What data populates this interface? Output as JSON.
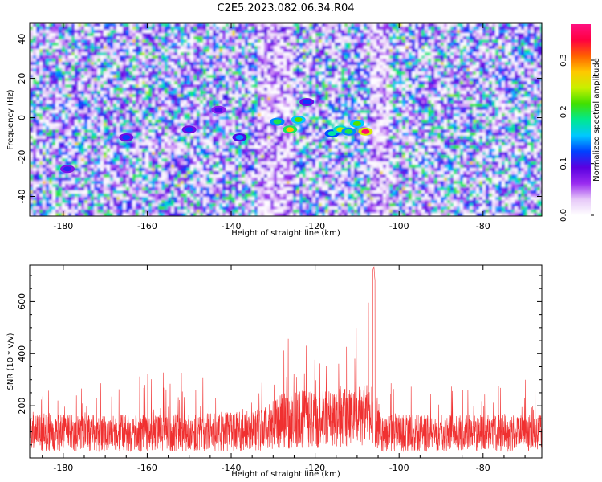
{
  "title": "C2E5.2023.082.06.34.R04",
  "chart_data": [
    {
      "type": "heatmap",
      "xlabel": "Height of straight line (km)",
      "ylabel": "Frequency (Hz)",
      "xlim": [
        -188,
        -66
      ],
      "ylim": [
        -50,
        48
      ],
      "x_ticks": [
        -180,
        -160,
        -140,
        -120,
        -100,
        -80
      ],
      "y_ticks": [
        -40,
        -20,
        0,
        20,
        40
      ],
      "colorbar": {
        "label": "Normalized spectral amplitude",
        "range": [
          0.0,
          0.37
        ],
        "ticks": [
          0.0,
          0.1,
          0.2,
          0.3
        ],
        "colors": [
          "#ffffff",
          "#e6c8f8",
          "#9a2cf0",
          "#5a00e0",
          "#0040ff",
          "#00c8ff",
          "#00e890",
          "#40e000",
          "#c8f000",
          "#ffc800",
          "#ff6000",
          "#ff0040",
          "#ff1080"
        ]
      },
      "hot_spots": [
        {
          "x": -129,
          "y": -2,
          "value": 0.2
        },
        {
          "x": -126,
          "y": -6,
          "value": 0.28
        },
        {
          "x": -124,
          "y": -1,
          "value": 0.22
        },
        {
          "x": -122,
          "y": 8,
          "value": 0.12
        },
        {
          "x": -116,
          "y": -8,
          "value": 0.18
        },
        {
          "x": -114,
          "y": -6,
          "value": 0.24
        },
        {
          "x": -112,
          "y": -7,
          "value": 0.2
        },
        {
          "x": -110,
          "y": -3,
          "value": 0.22
        },
        {
          "x": -108,
          "y": -7,
          "value": 0.36
        },
        {
          "x": -150,
          "y": -6,
          "value": 0.12
        },
        {
          "x": -138,
          "y": -10,
          "value": 0.14
        },
        {
          "x": -165,
          "y": -10,
          "value": 0.12
        },
        {
          "x": -179,
          "y": -26,
          "value": 0.11
        },
        {
          "x": -143,
          "y": 4,
          "value": 0.1
        }
      ]
    },
    {
      "type": "line",
      "xlabel": "Height of straight line (km)",
      "ylabel": "SNR (10 * v/v)",
      "xlim": [
        -188,
        -66
      ],
      "ylim": [
        0,
        740
      ],
      "x_ticks": [
        -180,
        -160,
        -140,
        -120,
        -100,
        -80
      ],
      "y_ticks": [
        200,
        400,
        600
      ],
      "color": "#f03030",
      "profile": [
        {
          "x": -188,
          "base": 95,
          "peak": 260
        },
        {
          "x": -160,
          "base": 95,
          "peak": 330
        },
        {
          "x": -140,
          "base": 100,
          "peak": 340
        },
        {
          "x": -132,
          "base": 110,
          "peak": 360
        },
        {
          "x": -128,
          "base": 140,
          "peak": 470
        },
        {
          "x": -124,
          "base": 150,
          "peak": 480
        },
        {
          "x": -120,
          "base": 145,
          "peak": 430
        },
        {
          "x": -114,
          "base": 150,
          "peak": 460
        },
        {
          "x": -109,
          "base": 160,
          "peak": 560
        },
        {
          "x": -106,
          "base": 160,
          "peak": 735
        },
        {
          "x": -104,
          "base": 95,
          "peak": 300
        },
        {
          "x": -90,
          "base": 95,
          "peak": 320
        },
        {
          "x": -66,
          "base": 95,
          "peak": 300
        }
      ]
    }
  ]
}
